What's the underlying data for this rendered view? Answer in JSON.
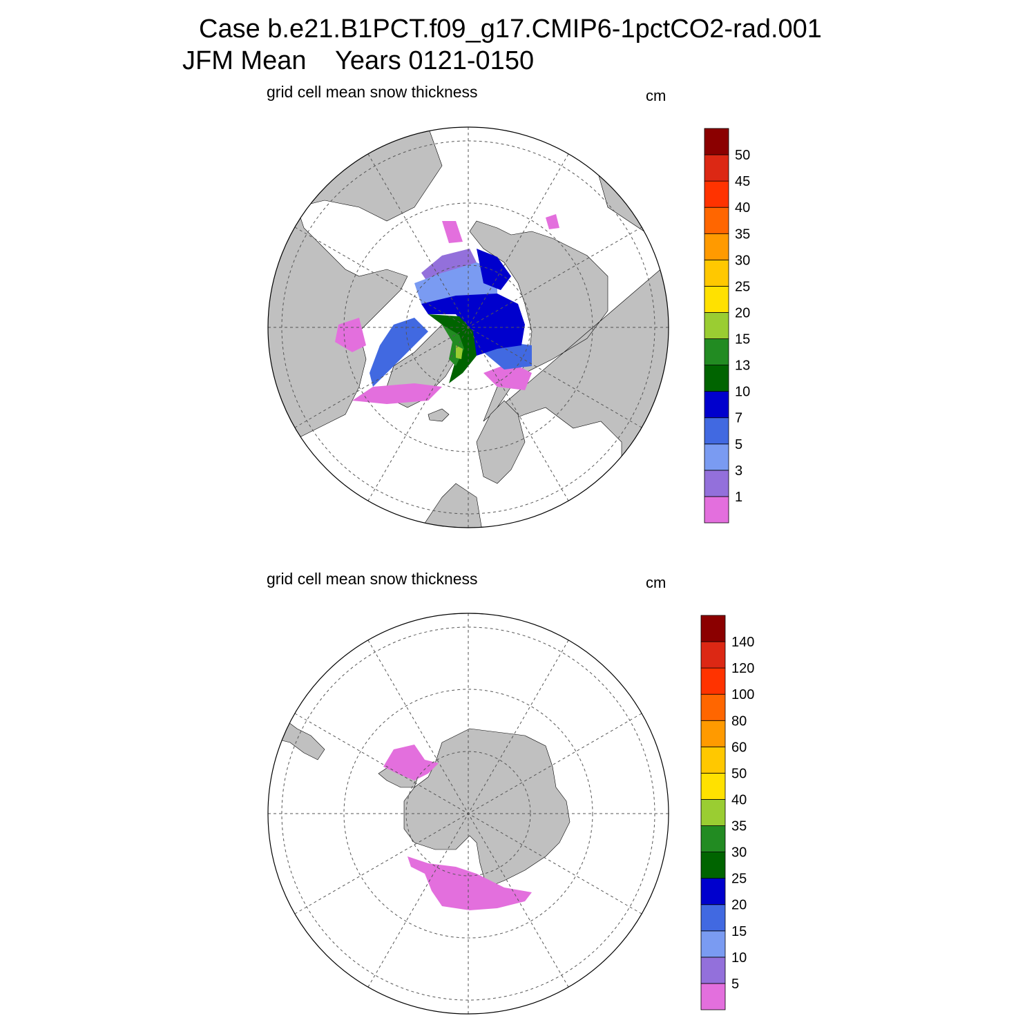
{
  "header": {
    "line1": "Case b.e21.B1PCT.f09_g17.CMIP6-1pctCO2-rad.001",
    "line2": "JFM Mean    Years 0121-0150"
  },
  "panels": [
    {
      "title": "grid cell mean snow thickness",
      "units": "cm",
      "hemisphere": "north",
      "colorbar": {
        "labels": [
          "1",
          "3",
          "5",
          "7",
          "10",
          "13",
          "15",
          "20",
          "25",
          "30",
          "35",
          "40",
          "45",
          "50"
        ],
        "colors": [
          "#e36fdd",
          "#9370db",
          "#7a9bf2",
          "#4169e1",
          "#0000cd",
          "#006400",
          "#228b22",
          "#9acd32",
          "#ffe100",
          "#ffc800",
          "#ff9a00",
          "#ff6600",
          "#ff3300",
          "#dc2814",
          "#8b0000"
        ]
      }
    },
    {
      "title": "grid cell mean snow thickness",
      "units": "cm",
      "hemisphere": "south",
      "colorbar": {
        "labels": [
          "5",
          "10",
          "15",
          "20",
          "25",
          "30",
          "35",
          "40",
          "50",
          "60",
          "80",
          "100",
          "120",
          "140"
        ],
        "colors": [
          "#e36fdd",
          "#9370db",
          "#7a9bf2",
          "#4169e1",
          "#0000cd",
          "#006400",
          "#228b22",
          "#9acd32",
          "#ffe100",
          "#ffc800",
          "#ff9a00",
          "#ff6600",
          "#ff3300",
          "#dc2814",
          "#8b0000"
        ]
      }
    }
  ],
  "colors": {
    "land": "#c0c0c0",
    "ocean": "#ffffff",
    "grid": "#555555"
  }
}
